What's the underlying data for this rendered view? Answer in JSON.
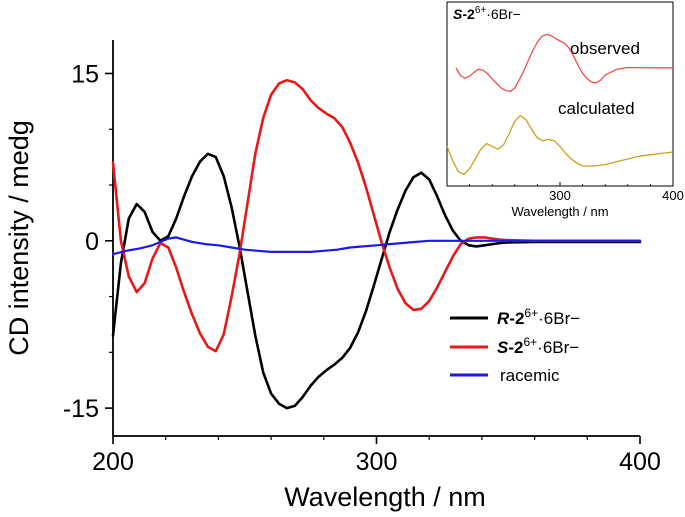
{
  "chart_data": [
    {
      "type": "line",
      "title": "",
      "xlabel": "Wavelength / nm",
      "ylabel": "CD intensity / medg",
      "xlim": [
        200,
        400
      ],
      "ylim": [
        -17.5,
        18
      ],
      "x_ticks": [
        200,
        300,
        400
      ],
      "x_tick_labels": [
        "200",
        "300",
        "400"
      ],
      "y_ticks": [
        -15,
        0,
        15
      ],
      "y_tick_labels": [
        "-15",
        "0",
        "15"
      ],
      "legend_position": "lower-right",
      "series": [
        {
          "name": "R-2 6+ · 6Br−",
          "label_italic": "R",
          "label_bold": "2",
          "label_sup": "6+",
          "label_rest": "·6Br−",
          "color": "#000000",
          "x": [
            200,
            203,
            206,
            209,
            212,
            215,
            218,
            221,
            224,
            227,
            230,
            233,
            236,
            239,
            242,
            245,
            248,
            251,
            254,
            257,
            260,
            263,
            266,
            269,
            272,
            275,
            278,
            281,
            284,
            287,
            290,
            293,
            296,
            299,
            302,
            305,
            308,
            311,
            314,
            317,
            320,
            323,
            326,
            329,
            332,
            335,
            338,
            341,
            344,
            347,
            350,
            360,
            370,
            380,
            390,
            400
          ],
          "y": [
            -8.5,
            -2,
            2,
            3.3,
            2.6,
            0.8,
            0,
            0.4,
            2,
            4,
            5.8,
            7.1,
            7.8,
            7.5,
            5.8,
            3,
            -0.5,
            -4.5,
            -8.5,
            -11.8,
            -13.7,
            -14.6,
            -15,
            -14.8,
            -14,
            -13,
            -12.2,
            -11.6,
            -11.1,
            -10.5,
            -9.6,
            -8.2,
            -6.3,
            -4,
            -1.6,
            0.8,
            2.8,
            4.5,
            5.7,
            6.1,
            5.5,
            4,
            2.3,
            0.9,
            0,
            -0.4,
            -0.5,
            -0.4,
            -0.3,
            -0.2,
            -0.15,
            -0.1,
            -0.1,
            -0.1,
            -0.1,
            -0.1
          ]
        },
        {
          "name": "S-2 6+ · 6Br−",
          "label_italic": "S",
          "label_bold": "2",
          "label_sup": "6+",
          "label_rest": "·6Br−",
          "color": "#e81818",
          "x": [
            200,
            203,
            206,
            209,
            212,
            215,
            218,
            221,
            224,
            227,
            230,
            233,
            236,
            239,
            242,
            245,
            248,
            251,
            254,
            257,
            260,
            263,
            266,
            269,
            272,
            275,
            278,
            281,
            284,
            287,
            290,
            293,
            296,
            299,
            302,
            305,
            308,
            311,
            314,
            317,
            320,
            323,
            326,
            329,
            332,
            335,
            338,
            341,
            344,
            347,
            350,
            360,
            370,
            380,
            390,
            400
          ],
          "y": [
            7,
            0,
            -3.2,
            -4.6,
            -3.8,
            -1.6,
            -0.2,
            -0.6,
            -2.4,
            -4.6,
            -6.6,
            -8.3,
            -9.5,
            -9.9,
            -8.4,
            -5,
            -1.2,
            3.3,
            7.8,
            11,
            13.1,
            14.1,
            14.4,
            14.2,
            13.6,
            12.6,
            11.9,
            11.4,
            11,
            10.2,
            8.8,
            7,
            4.8,
            2.3,
            -0.2,
            -2.4,
            -4.3,
            -5.6,
            -6.2,
            -6.1,
            -5.4,
            -4.2,
            -2.8,
            -1.4,
            -0.3,
            0.2,
            0.3,
            0.3,
            0.2,
            0.1,
            0.05,
            0,
            0,
            0,
            0,
            0
          ]
        },
        {
          "name": "racemic",
          "color": "#1a1aee",
          "x": [
            200,
            205,
            210,
            215,
            218,
            221,
            224,
            227,
            230,
            235,
            240,
            245,
            250,
            255,
            260,
            265,
            270,
            275,
            280,
            285,
            290,
            295,
            300,
            305,
            310,
            315,
            320,
            325,
            330,
            335,
            340,
            345,
            350,
            360,
            370,
            380,
            390,
            400
          ],
          "y": [
            -1.2,
            -0.9,
            -0.7,
            -0.4,
            -0.1,
            0.2,
            0.3,
            0.1,
            -0.1,
            -0.3,
            -0.4,
            -0.6,
            -0.8,
            -0.9,
            -1,
            -1,
            -1,
            -1,
            -0.9,
            -0.8,
            -0.6,
            -0.5,
            -0.4,
            -0.3,
            -0.2,
            -0.1,
            0,
            0,
            0,
            0,
            0,
            0,
            0,
            0,
            0,
            0,
            0,
            0
          ]
        }
      ]
    },
    {
      "type": "line",
      "title": "S-2 6+ · 6Br−",
      "title_parts": {
        "italic": "S",
        "bold": "2",
        "sup": "6+",
        "rest": "·6Br−"
      },
      "xlabel": "Wavelength / nm",
      "ylabel": "",
      "xlim": [
        200,
        400
      ],
      "x_ticks": [
        300,
        400
      ],
      "x_tick_labels": [
        "300",
        "400"
      ],
      "annotations": [
        "observed",
        "calculated"
      ],
      "series": [
        {
          "name": "observed",
          "color": "#f05050",
          "x": [
            208,
            212,
            216,
            220,
            224,
            228,
            232,
            236,
            240,
            244,
            248,
            252,
            256,
            260,
            264,
            268,
            272,
            276,
            280,
            284,
            288,
            292,
            296,
            300,
            304,
            308,
            312,
            316,
            320,
            324,
            328,
            332,
            336,
            340,
            350,
            360,
            380,
            400
          ],
          "y": [
            0,
            3.3,
            4.3,
            3.5,
            1.8,
            0.5,
            1,
            2.5,
            4.6,
            6.6,
            8.5,
            9.6,
            9.9,
            8.5,
            5,
            1.2,
            -3.3,
            -7.5,
            -11,
            -13.5,
            -14.3,
            -13.8,
            -12.6,
            -11.5,
            -10.5,
            -8.5,
            -5,
            -1.2,
            2.3,
            4.5,
            6,
            6.3,
            5.2,
            3,
            0.6,
            -0.2,
            -0.1,
            -0.1
          ]
        },
        {
          "name": "calculated",
          "color": "#c9a021",
          "x": [
            200,
            205,
            210,
            215,
            220,
            225,
            230,
            235,
            240,
            245,
            250,
            255,
            260,
            265,
            270,
            275,
            280,
            285,
            290,
            295,
            300,
            305,
            310,
            315,
            320,
            330,
            340,
            350,
            360,
            370,
            380,
            390,
            400
          ],
          "y": [
            0.4,
            -0.6,
            -1.4,
            -1.6,
            -1.2,
            -0.5,
            0.2,
            0.6,
            0.4,
            0.2,
            0.5,
            1.3,
            2.2,
            2.6,
            2.3,
            1.6,
            1,
            0.8,
            0.9,
            0.8,
            0.4,
            -0.1,
            -0.5,
            -0.8,
            -1,
            -1,
            -0.9,
            -0.7,
            -0.5,
            -0.3,
            -0.2,
            -0.1,
            0
          ]
        }
      ]
    }
  ]
}
